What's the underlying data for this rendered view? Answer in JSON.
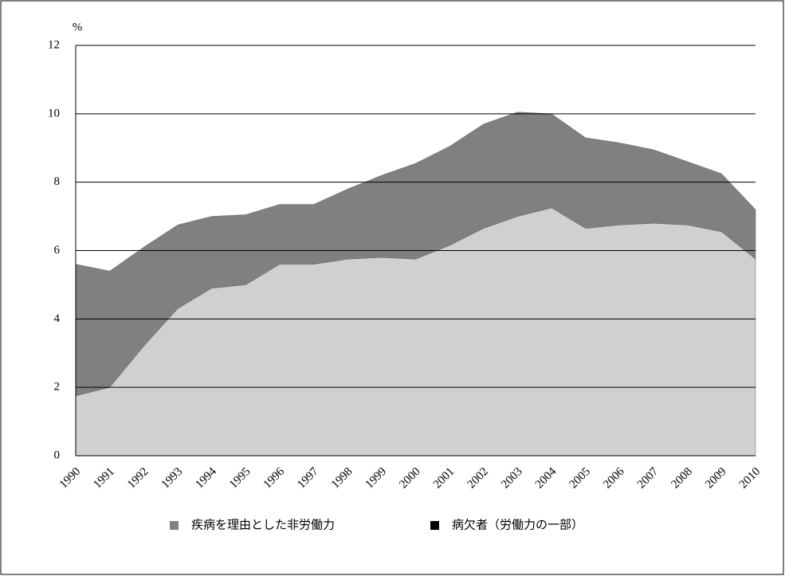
{
  "chart_data": {
    "type": "stacked_area",
    "y_unit_label": "%",
    "categories": [
      "1990",
      "1991",
      "1992",
      "1993",
      "1994",
      "1995",
      "1996",
      "1997",
      "1998",
      "1999",
      "2000",
      "2001",
      "2002",
      "2003",
      "2004",
      "2005",
      "2006",
      "2007",
      "2008",
      "2009",
      "2010"
    ],
    "series": [
      {
        "name": "疾病を理由とした非労働力",
        "color": "#d0d0d0",
        "legend_color": "#808080",
        "values": [
          1.75,
          2.0,
          3.2,
          4.3,
          4.9,
          5.0,
          5.6,
          5.6,
          5.75,
          5.8,
          5.75,
          6.15,
          6.65,
          7.0,
          7.25,
          6.65,
          6.75,
          6.8,
          6.75,
          6.55,
          5.75
        ]
      },
      {
        "name": "病欠者（労働力の一部）",
        "color": "#808080",
        "legend_color": "#000000",
        "values": [
          3.85,
          3.4,
          2.9,
          2.45,
          2.1,
          2.05,
          1.75,
          1.75,
          2.05,
          2.4,
          2.8,
          2.9,
          3.05,
          3.05,
          2.75,
          2.65,
          2.4,
          2.15,
          1.85,
          1.7,
          1.45
        ]
      }
    ],
    "ylim": [
      0,
      12
    ],
    "yticks": [
      0,
      2,
      4,
      6,
      8,
      10,
      12
    ],
    "grid": true
  }
}
